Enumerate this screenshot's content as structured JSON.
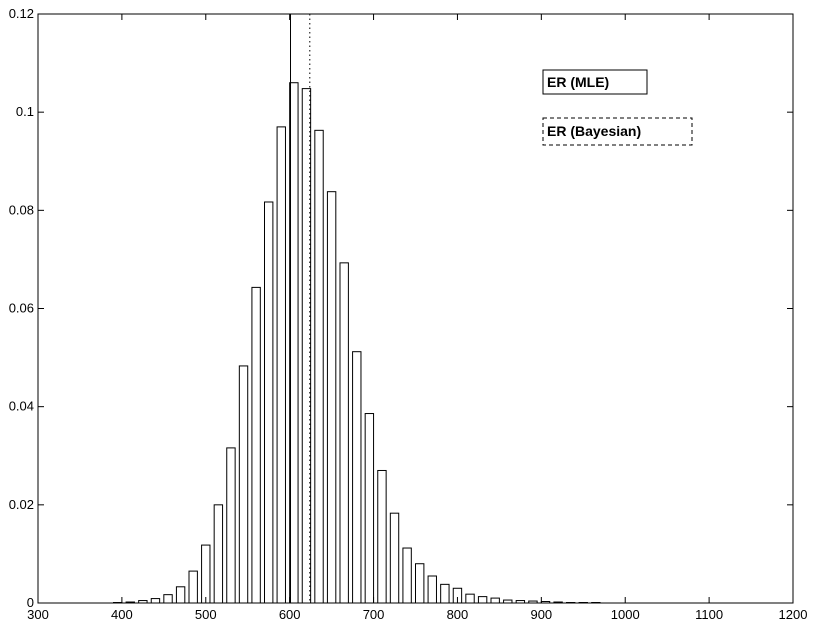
{
  "chart_data": {
    "type": "bar",
    "title": "",
    "xlabel": "",
    "ylabel": "",
    "xlim": [
      300,
      1200
    ],
    "ylim": [
      0,
      0.12
    ],
    "x_ticks": [
      300,
      400,
      500,
      600,
      700,
      800,
      900,
      1000,
      1100,
      1200
    ],
    "x_tick_labels": [
      "300",
      "400",
      "500",
      "600",
      "700",
      "800",
      "900",
      "1000",
      "1100",
      "1200"
    ],
    "y_ticks": [
      0,
      0.02,
      0.04,
      0.06,
      0.08,
      0.1,
      0.12
    ],
    "y_tick_labels": [
      "0",
      "0.02",
      "0.04",
      "0.06",
      "0.08",
      "0.1",
      "0.12"
    ],
    "grid": false,
    "bin_width": 15,
    "bar_width": 10,
    "x": [
      395,
      410,
      425,
      440,
      455,
      470,
      485,
      500,
      515,
      530,
      545,
      560,
      575,
      590,
      605,
      620,
      635,
      650,
      665,
      680,
      695,
      710,
      725,
      740,
      755,
      770,
      785,
      800,
      815,
      830,
      845,
      860,
      875,
      890,
      905,
      920,
      935,
      950,
      965
    ],
    "values": [
      0.0001,
      0.0002,
      0.0005,
      0.0009,
      0.0017,
      0.0033,
      0.0065,
      0.0118,
      0.02,
      0.0316,
      0.0483,
      0.0643,
      0.0817,
      0.097,
      0.106,
      0.1048,
      0.0963,
      0.0838,
      0.0693,
      0.0512,
      0.0386,
      0.027,
      0.0183,
      0.0112,
      0.008,
      0.0055,
      0.0038,
      0.003,
      0.0018,
      0.0013,
      0.001,
      0.0006,
      0.0005,
      0.0004,
      0.0003,
      0.0002,
      0.0001,
      0.0001,
      0.0001
    ],
    "reference_lines": [
      {
        "name": "ER (MLE)",
        "x": 601,
        "style": "solid",
        "color": "#000000"
      },
      {
        "name": "ER (Bayesian)",
        "x": 624,
        "style": "dotted",
        "color": "#000000"
      }
    ],
    "legend": {
      "placement": "top-right",
      "entries": [
        "ER (MLE)",
        "ER (Bayesian)"
      ]
    }
  }
}
